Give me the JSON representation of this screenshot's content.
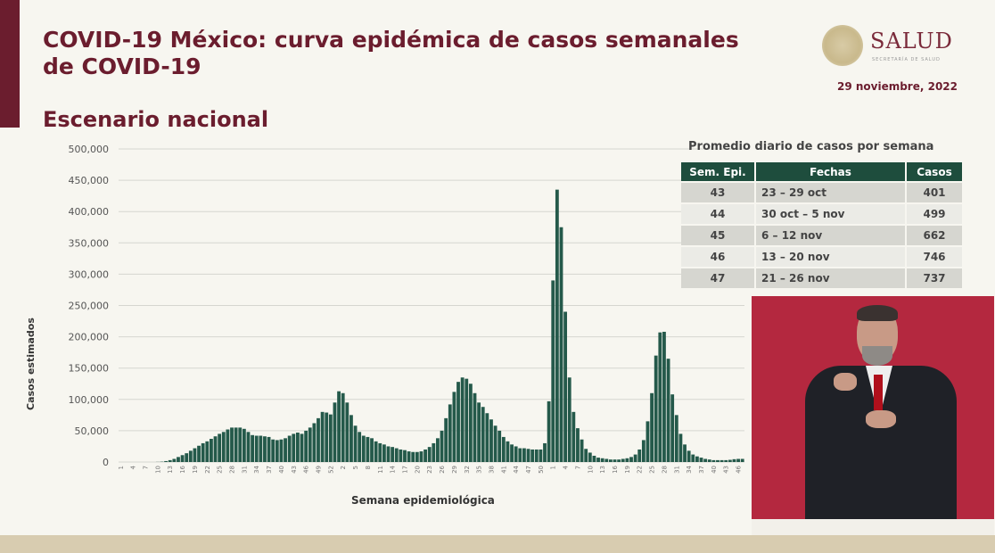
{
  "header": {
    "title": "COVID-19 México: curva epidémica de casos semanales de COVID-19",
    "subtitle": "Escenario nacional",
    "date": "29 noviembre, 2022",
    "logo_text": "SALUD",
    "logo_subtext": "SECRETARÍA DE SALUD"
  },
  "colors": {
    "accent": "#6b1d2e",
    "bars": "#24594a",
    "table_header": "#1e4d3d",
    "video_bg": "#b4283f"
  },
  "table": {
    "title": "Promedio diario de casos por semana",
    "headers": [
      "Sem. Epi.",
      "Fechas",
      "Casos"
    ],
    "rows": [
      [
        "43",
        "23 – 29 oct",
        "401"
      ],
      [
        "44",
        "30 oct – 5 nov",
        "499"
      ],
      [
        "45",
        "6 – 12 nov",
        "662"
      ],
      [
        "46",
        "13 – 20 nov",
        "746"
      ],
      [
        "47",
        "21 – 26 nov",
        "737"
      ]
    ]
  },
  "chart_data": {
    "type": "bar",
    "xlabel": "Semana epidemiológica",
    "ylabel": "Casos estimados",
    "ylim": [
      0,
      500000
    ],
    "yticks": [
      "0",
      "50,000",
      "100,000",
      "150,000",
      "200,000",
      "250,000",
      "300,000",
      "350,000",
      "400,000",
      "450,000",
      "500,000"
    ],
    "grid": true,
    "x_tick_labels": [
      "1",
      "4",
      "7",
      "10",
      "13",
      "16",
      "19",
      "22",
      "25",
      "28",
      "31",
      "34",
      "37",
      "40",
      "43",
      "46",
      "49",
      "52",
      "2",
      "5",
      "8",
      "11",
      "14",
      "17",
      "20",
      "23",
      "26",
      "29",
      "32",
      "35",
      "38",
      "41",
      "44",
      "47",
      "50",
      "1",
      "4",
      "7",
      "10",
      "13",
      "16",
      "19",
      "22",
      "25",
      "28",
      "31",
      "34",
      "37",
      "40",
      "43",
      "46"
    ],
    "segments": [
      {
        "year_weeks": 53,
        "values": [
          0,
          0,
          0,
          0,
          0,
          0,
          0,
          0,
          0,
          200,
          500,
          1500,
          3000,
          5000,
          8000,
          11000,
          14000,
          18000,
          22000,
          26000,
          30000,
          33000,
          37000,
          41000,
          45000,
          48000,
          52000,
          55000,
          55000,
          55000,
          53000,
          48000,
          43000,
          42000,
          42000,
          41000,
          40000,
          36000,
          35000,
          36000,
          38000,
          42000,
          45000,
          47000,
          45000,
          50000,
          55000,
          62000,
          70000,
          80000,
          79000,
          76000,
          95000
        ]
      },
      {
        "year_weeks": 52,
        "values": [
          113000,
          110000,
          95000,
          75000,
          58000,
          48000,
          42000,
          40000,
          38000,
          33000,
          30000,
          28000,
          25000,
          24000,
          22000,
          20000,
          19000,
          17000,
          16000,
          16000,
          17000,
          20000,
          24000,
          30000,
          38000,
          50000,
          70000,
          92000,
          112000,
          128000,
          135000,
          133000,
          125000,
          110000,
          95000,
          88000,
          78000,
          68000,
          58000,
          50000,
          40000,
          33000,
          28000,
          25000,
          22000,
          22000,
          21000,
          20000,
          20000,
          20000,
          30000,
          97000
        ]
      },
      {
        "year_weeks": 47,
        "values": [
          290000,
          435000,
          375000,
          240000,
          135000,
          80000,
          54000,
          36000,
          21000,
          15000,
          10000,
          7000,
          6000,
          5000,
          4000,
          4000,
          4000,
          5000,
          6000,
          8000,
          12000,
          20000,
          35000,
          65000,
          110000,
          170000,
          207000,
          208000,
          165000,
          108000,
          75000,
          45000,
          28000,
          18000,
          12000,
          9000,
          7000,
          5000,
          4000,
          3000,
          3000,
          3000,
          3000,
          3500,
          4500,
          5000,
          5000
        ]
      }
    ]
  }
}
